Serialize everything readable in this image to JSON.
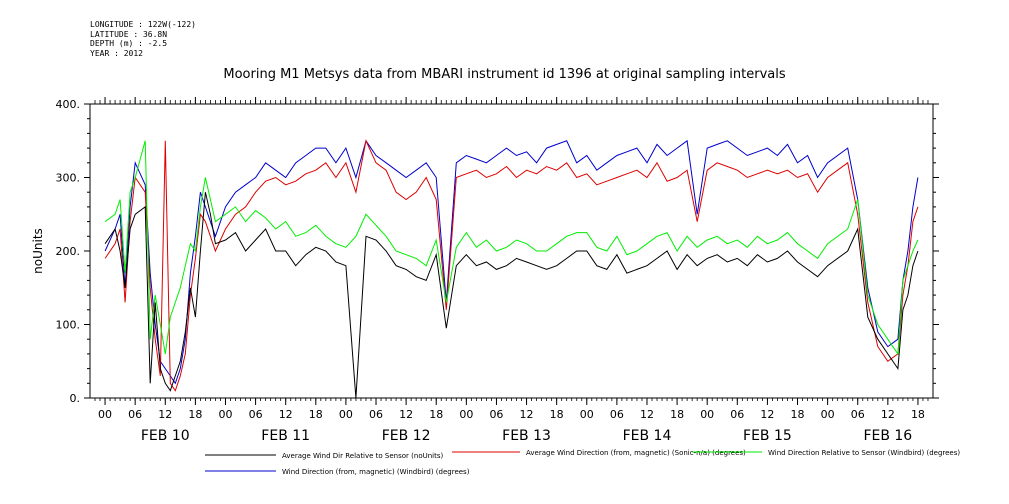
{
  "meta": {
    "longitude": "LONGITUDE : 122W(-122)",
    "latitude": "LATITUDE : 36.8N",
    "depth": "DEPTH (m) : -2.5",
    "year": "YEAR : 2012"
  },
  "colors": {
    "series1": "#000000",
    "series2": "#dd0000",
    "series3": "#00ee00",
    "series4": "#0000cc"
  },
  "chart_data": {
    "type": "line",
    "title": "Mooring M1 Metsys data from MBARI instrument id 1396 at original sampling intervals",
    "xlabel": "",
    "ylabel": "noUnits",
    "ylim": [
      0,
      400
    ],
    "yticks": [
      0,
      100,
      200,
      300,
      400
    ],
    "xlim_hours": [
      -3,
      165
    ],
    "hour_ticks": [
      "00",
      "06",
      "12",
      "18",
      "00",
      "06",
      "12",
      "18",
      "00",
      "06",
      "12",
      "18",
      "00",
      "06",
      "12",
      "18",
      "00",
      "06",
      "12",
      "18",
      "00",
      "06",
      "12",
      "18",
      "00",
      "06",
      "12",
      "18"
    ],
    "day_labels": [
      "FEB 10",
      "FEB 11",
      "FEB 12",
      "FEB 13",
      "FEB 14",
      "FEB 15",
      "FEB 16"
    ],
    "grid": false,
    "legend_position": "bottom",
    "series": [
      {
        "name": "Average Wind Dir Relative to Sensor (noUnits)",
        "x": [
          0,
          2,
          3,
          4,
          5,
          6,
          8,
          9,
          10,
          11,
          12,
          13,
          14,
          15,
          16,
          17,
          18,
          19,
          20,
          21,
          22,
          24,
          26,
          28,
          30,
          32,
          34,
          36,
          38,
          40,
          42,
          44,
          46,
          48,
          50,
          52,
          54,
          56,
          58,
          60,
          62,
          64,
          66,
          68,
          70,
          72,
          74,
          76,
          78,
          80,
          82,
          84,
          86,
          88,
          90,
          92,
          94,
          96,
          98,
          100,
          102,
          104,
          106,
          108,
          110,
          112,
          114,
          116,
          118,
          120,
          122,
          124,
          126,
          128,
          130,
          132,
          134,
          136,
          138,
          140,
          142,
          144,
          148,
          150,
          152,
          154,
          156,
          158,
          159,
          160,
          161,
          162
        ],
        "values": [
          210,
          230,
          200,
          150,
          230,
          250,
          260,
          20,
          130,
          40,
          20,
          10,
          30,
          50,
          90,
          150,
          110,
          200,
          280,
          250,
          210,
          215,
          225,
          200,
          215,
          230,
          200,
          200,
          180,
          195,
          205,
          200,
          185,
          180,
          0,
          220,
          215,
          200,
          180,
          175,
          165,
          160,
          195,
          95,
          180,
          195,
          180,
          185,
          175,
          180,
          190,
          185,
          180,
          175,
          180,
          190,
          200,
          200,
          180,
          175,
          195,
          170,
          175,
          180,
          190,
          200,
          175,
          195,
          180,
          190,
          195,
          185,
          190,
          180,
          195,
          185,
          190,
          200,
          185,
          175,
          165,
          180,
          200,
          230,
          110,
          80,
          60,
          40,
          120,
          140,
          180,
          200
        ]
      },
      {
        "name": "Average Wind Direction (from, magnetic) (Sonic-n/a) (degrees)",
        "x": [
          0,
          2,
          3,
          4,
          5,
          6,
          8,
          9,
          10,
          11,
          12,
          13,
          14,
          15,
          16,
          17,
          18,
          19,
          20,
          21,
          22,
          24,
          26,
          28,
          30,
          32,
          34,
          36,
          38,
          40,
          42,
          44,
          46,
          48,
          50,
          52,
          54,
          56,
          58,
          60,
          62,
          64,
          66,
          68,
          70,
          72,
          74,
          76,
          78,
          80,
          82,
          84,
          86,
          88,
          90,
          92,
          94,
          96,
          98,
          100,
          102,
          104,
          106,
          108,
          110,
          112,
          114,
          116,
          118,
          120,
          122,
          124,
          126,
          128,
          130,
          132,
          134,
          136,
          138,
          140,
          142,
          144,
          148,
          150,
          152,
          154,
          156,
          158,
          159,
          160,
          161,
          162
        ],
        "values": [
          190,
          210,
          230,
          130,
          240,
          300,
          280,
          150,
          80,
          30,
          350,
          20,
          10,
          30,
          60,
          140,
          190,
          250,
          240,
          220,
          200,
          230,
          250,
          260,
          280,
          295,
          300,
          290,
          295,
          305,
          310,
          320,
          300,
          320,
          280,
          350,
          320,
          310,
          280,
          270,
          280,
          300,
          270,
          120,
          300,
          305,
          310,
          300,
          305,
          315,
          300,
          310,
          305,
          315,
          310,
          320,
          300,
          305,
          290,
          295,
          300,
          305,
          310,
          300,
          320,
          295,
          300,
          310,
          240,
          310,
          320,
          315,
          310,
          300,
          305,
          310,
          305,
          310,
          300,
          305,
          280,
          300,
          320,
          250,
          130,
          70,
          50,
          60,
          140,
          180,
          240,
          260
        ]
      },
      {
        "name": "Wind Direction Relative to Sensor (Windbird) (degrees)",
        "x": [
          0,
          2,
          3,
          4,
          5,
          6,
          8,
          9,
          10,
          11,
          12,
          13,
          14,
          15,
          16,
          17,
          18,
          19,
          20,
          21,
          22,
          24,
          26,
          28,
          30,
          32,
          34,
          36,
          38,
          40,
          42,
          44,
          46,
          48,
          50,
          52,
          54,
          56,
          58,
          60,
          62,
          64,
          66,
          68,
          70,
          72,
          74,
          76,
          78,
          80,
          82,
          84,
          86,
          88,
          90,
          92,
          94,
          96,
          98,
          100,
          102,
          104,
          106,
          108,
          110,
          112,
          114,
          116,
          118,
          120,
          122,
          124,
          126,
          128,
          130,
          132,
          134,
          136,
          138,
          140,
          142,
          144,
          148,
          150,
          152,
          154,
          156,
          158,
          159,
          160,
          161,
          162
        ],
        "values": [
          240,
          250,
          270,
          170,
          280,
          300,
          350,
          80,
          140,
          100,
          60,
          110,
          130,
          150,
          180,
          210,
          200,
          260,
          300,
          270,
          240,
          250,
          260,
          240,
          255,
          245,
          230,
          240,
          220,
          225,
          235,
          220,
          210,
          205,
          220,
          250,
          235,
          220,
          200,
          195,
          190,
          180,
          215,
          130,
          205,
          225,
          205,
          215,
          200,
          205,
          215,
          210,
          200,
          200,
          210,
          220,
          225,
          225,
          205,
          200,
          220,
          195,
          200,
          210,
          220,
          225,
          200,
          220,
          205,
          215,
          220,
          210,
          215,
          205,
          220,
          210,
          215,
          225,
          210,
          200,
          190,
          210,
          230,
          270,
          140,
          100,
          80,
          60,
          160,
          180,
          200,
          215
        ]
      },
      {
        "name": "Wind Direction (from, magnetic) (Windbird) (degrees)",
        "x": [
          0,
          2,
          3,
          4,
          5,
          6,
          8,
          9,
          10,
          11,
          12,
          13,
          14,
          15,
          16,
          17,
          18,
          19,
          20,
          21,
          22,
          24,
          26,
          28,
          30,
          32,
          34,
          36,
          38,
          40,
          42,
          44,
          46,
          48,
          50,
          52,
          54,
          56,
          58,
          60,
          62,
          64,
          66,
          68,
          70,
          72,
          74,
          76,
          78,
          80,
          82,
          84,
          86,
          88,
          90,
          92,
          94,
          96,
          98,
          100,
          102,
          104,
          106,
          108,
          110,
          112,
          114,
          116,
          118,
          120,
          122,
          124,
          126,
          128,
          130,
          132,
          134,
          136,
          138,
          140,
          142,
          144,
          148,
          150,
          152,
          154,
          156,
          158,
          159,
          160,
          161,
          162
        ],
        "values": [
          200,
          230,
          250,
          150,
          260,
          320,
          290,
          170,
          100,
          50,
          40,
          30,
          20,
          40,
          80,
          170,
          220,
          280,
          260,
          240,
          220,
          260,
          280,
          290,
          300,
          320,
          310,
          300,
          320,
          330,
          340,
          340,
          320,
          340,
          300,
          350,
          330,
          320,
          310,
          300,
          310,
          320,
          300,
          130,
          320,
          330,
          325,
          320,
          330,
          340,
          330,
          335,
          320,
          340,
          345,
          350,
          320,
          330,
          310,
          320,
          330,
          335,
          340,
          320,
          345,
          330,
          340,
          350,
          250,
          340,
          345,
          350,
          340,
          330,
          335,
          340,
          330,
          345,
          320,
          330,
          300,
          320,
          340,
          270,
          150,
          90,
          70,
          80,
          160,
          200,
          260,
          300
        ]
      }
    ]
  },
  "legend": [
    {
      "label": "Average Wind Dir Relative to Sensor (noUnits)",
      "color": "#000000"
    },
    {
      "label": "Average Wind Direction (from, magnetic) (Sonic-n/a) (degrees)",
      "color": "#dd0000"
    },
    {
      "label": "Wind Direction Relative to Sensor (Windbird) (degrees)",
      "color": "#00ee00"
    },
    {
      "label": "Wind Direction (from, magnetic) (Windbird) (degrees)",
      "color": "#0000cc"
    }
  ]
}
